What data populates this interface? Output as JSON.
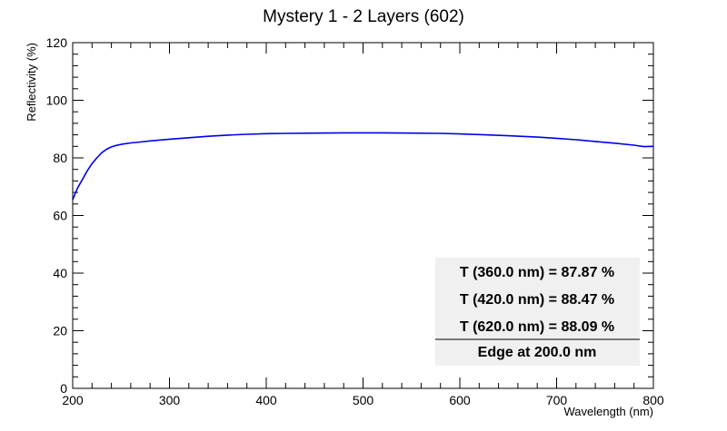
{
  "chart_data": {
    "type": "line",
    "title": "Mystery 1 - 2 Layers (602)",
    "xlabel": "Wavelength (nm)",
    "ylabel": "Reflectivity (%)",
    "xlim": [
      200,
      800
    ],
    "ylim": [
      0,
      120
    ],
    "x_ticks": [
      "200",
      "300",
      "400",
      "500",
      "600",
      "700",
      "800"
    ],
    "y_ticks": [
      "0",
      "20",
      "40",
      "60",
      "80",
      "100",
      "120"
    ],
    "grid": false,
    "series": [
      {
        "color": "#0000ee",
        "x": [
          200,
          205,
          210,
          215,
          220,
          225,
          230,
          235,
          240,
          245,
          250,
          260,
          270,
          280,
          300,
          320,
          340,
          360,
          380,
          400,
          420,
          450,
          480,
          500,
          520,
          550,
          580,
          600,
          620,
          650,
          680,
          700,
          720,
          740,
          760,
          780,
          790,
          800
        ],
        "y": [
          65.5,
          69.5,
          72.5,
          75.5,
          78.0,
          80.0,
          81.8,
          83.0,
          83.8,
          84.3,
          84.7,
          85.2,
          85.5,
          85.9,
          86.5,
          87.0,
          87.5,
          87.9,
          88.2,
          88.4,
          88.5,
          88.6,
          88.7,
          88.7,
          88.7,
          88.6,
          88.5,
          88.3,
          88.1,
          87.7,
          87.2,
          86.8,
          86.3,
          85.7,
          85.1,
          84.4,
          83.9,
          84.0
        ]
      }
    ],
    "annotations": {
      "lines": [
        "T (360.0 nm) = 87.87 %",
        "T (420.0 nm) = 88.47 %",
        "T (620.0 nm) = 88.09 %"
      ],
      "footer": "Edge at 200.0 nm",
      "location": "bottom-right"
    }
  }
}
